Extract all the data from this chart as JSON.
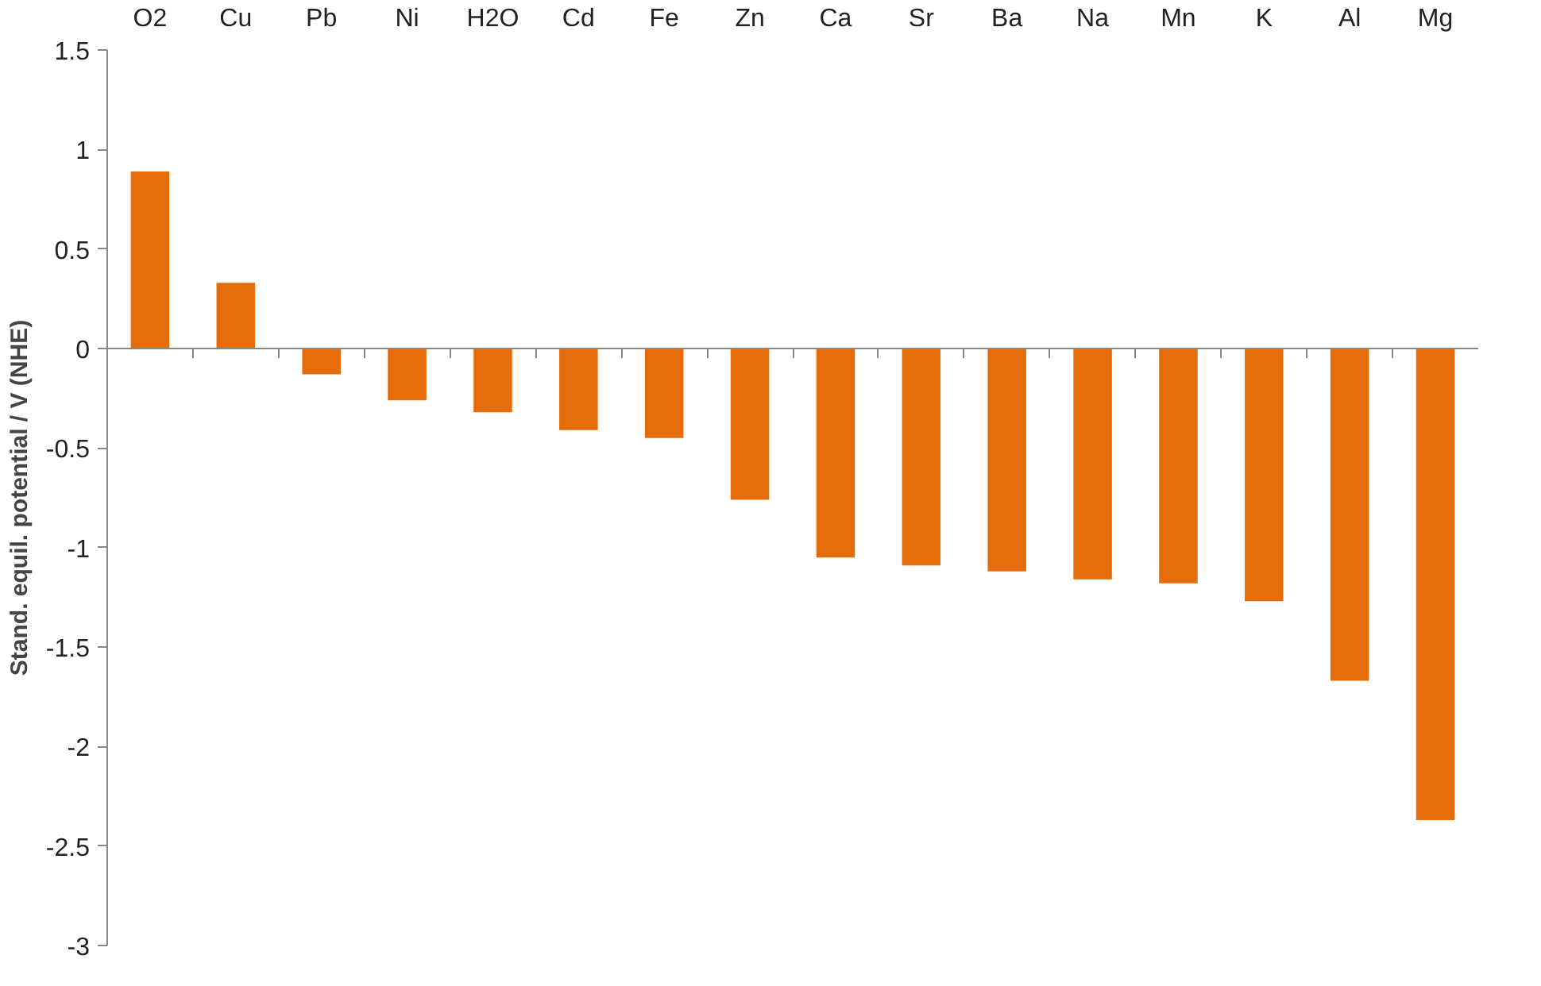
{
  "chart_data": {
    "type": "bar",
    "ylabel": "Stand. equil. potential / V (NHE)",
    "categories": [
      "O2",
      "Cu",
      "Pb",
      "Ni",
      "H2O",
      "Cd",
      "Fe",
      "Zn",
      "Ca",
      "Sr",
      "Ba",
      "Na",
      "Mn",
      "K",
      "Al",
      "Mg"
    ],
    "values": [
      0.89,
      0.33,
      -0.13,
      -0.26,
      -0.32,
      -0.41,
      -0.45,
      -0.76,
      -1.05,
      -1.09,
      -1.12,
      -1.16,
      -1.18,
      -1.27,
      -1.67,
      -2.37
    ],
    "color": "#e46c0a",
    "ylim": [
      -3,
      1.5
    ],
    "yticks": [
      -3,
      -2.5,
      -2,
      -1.5,
      -1,
      -0.5,
      0,
      0.5,
      1,
      1.5
    ]
  }
}
